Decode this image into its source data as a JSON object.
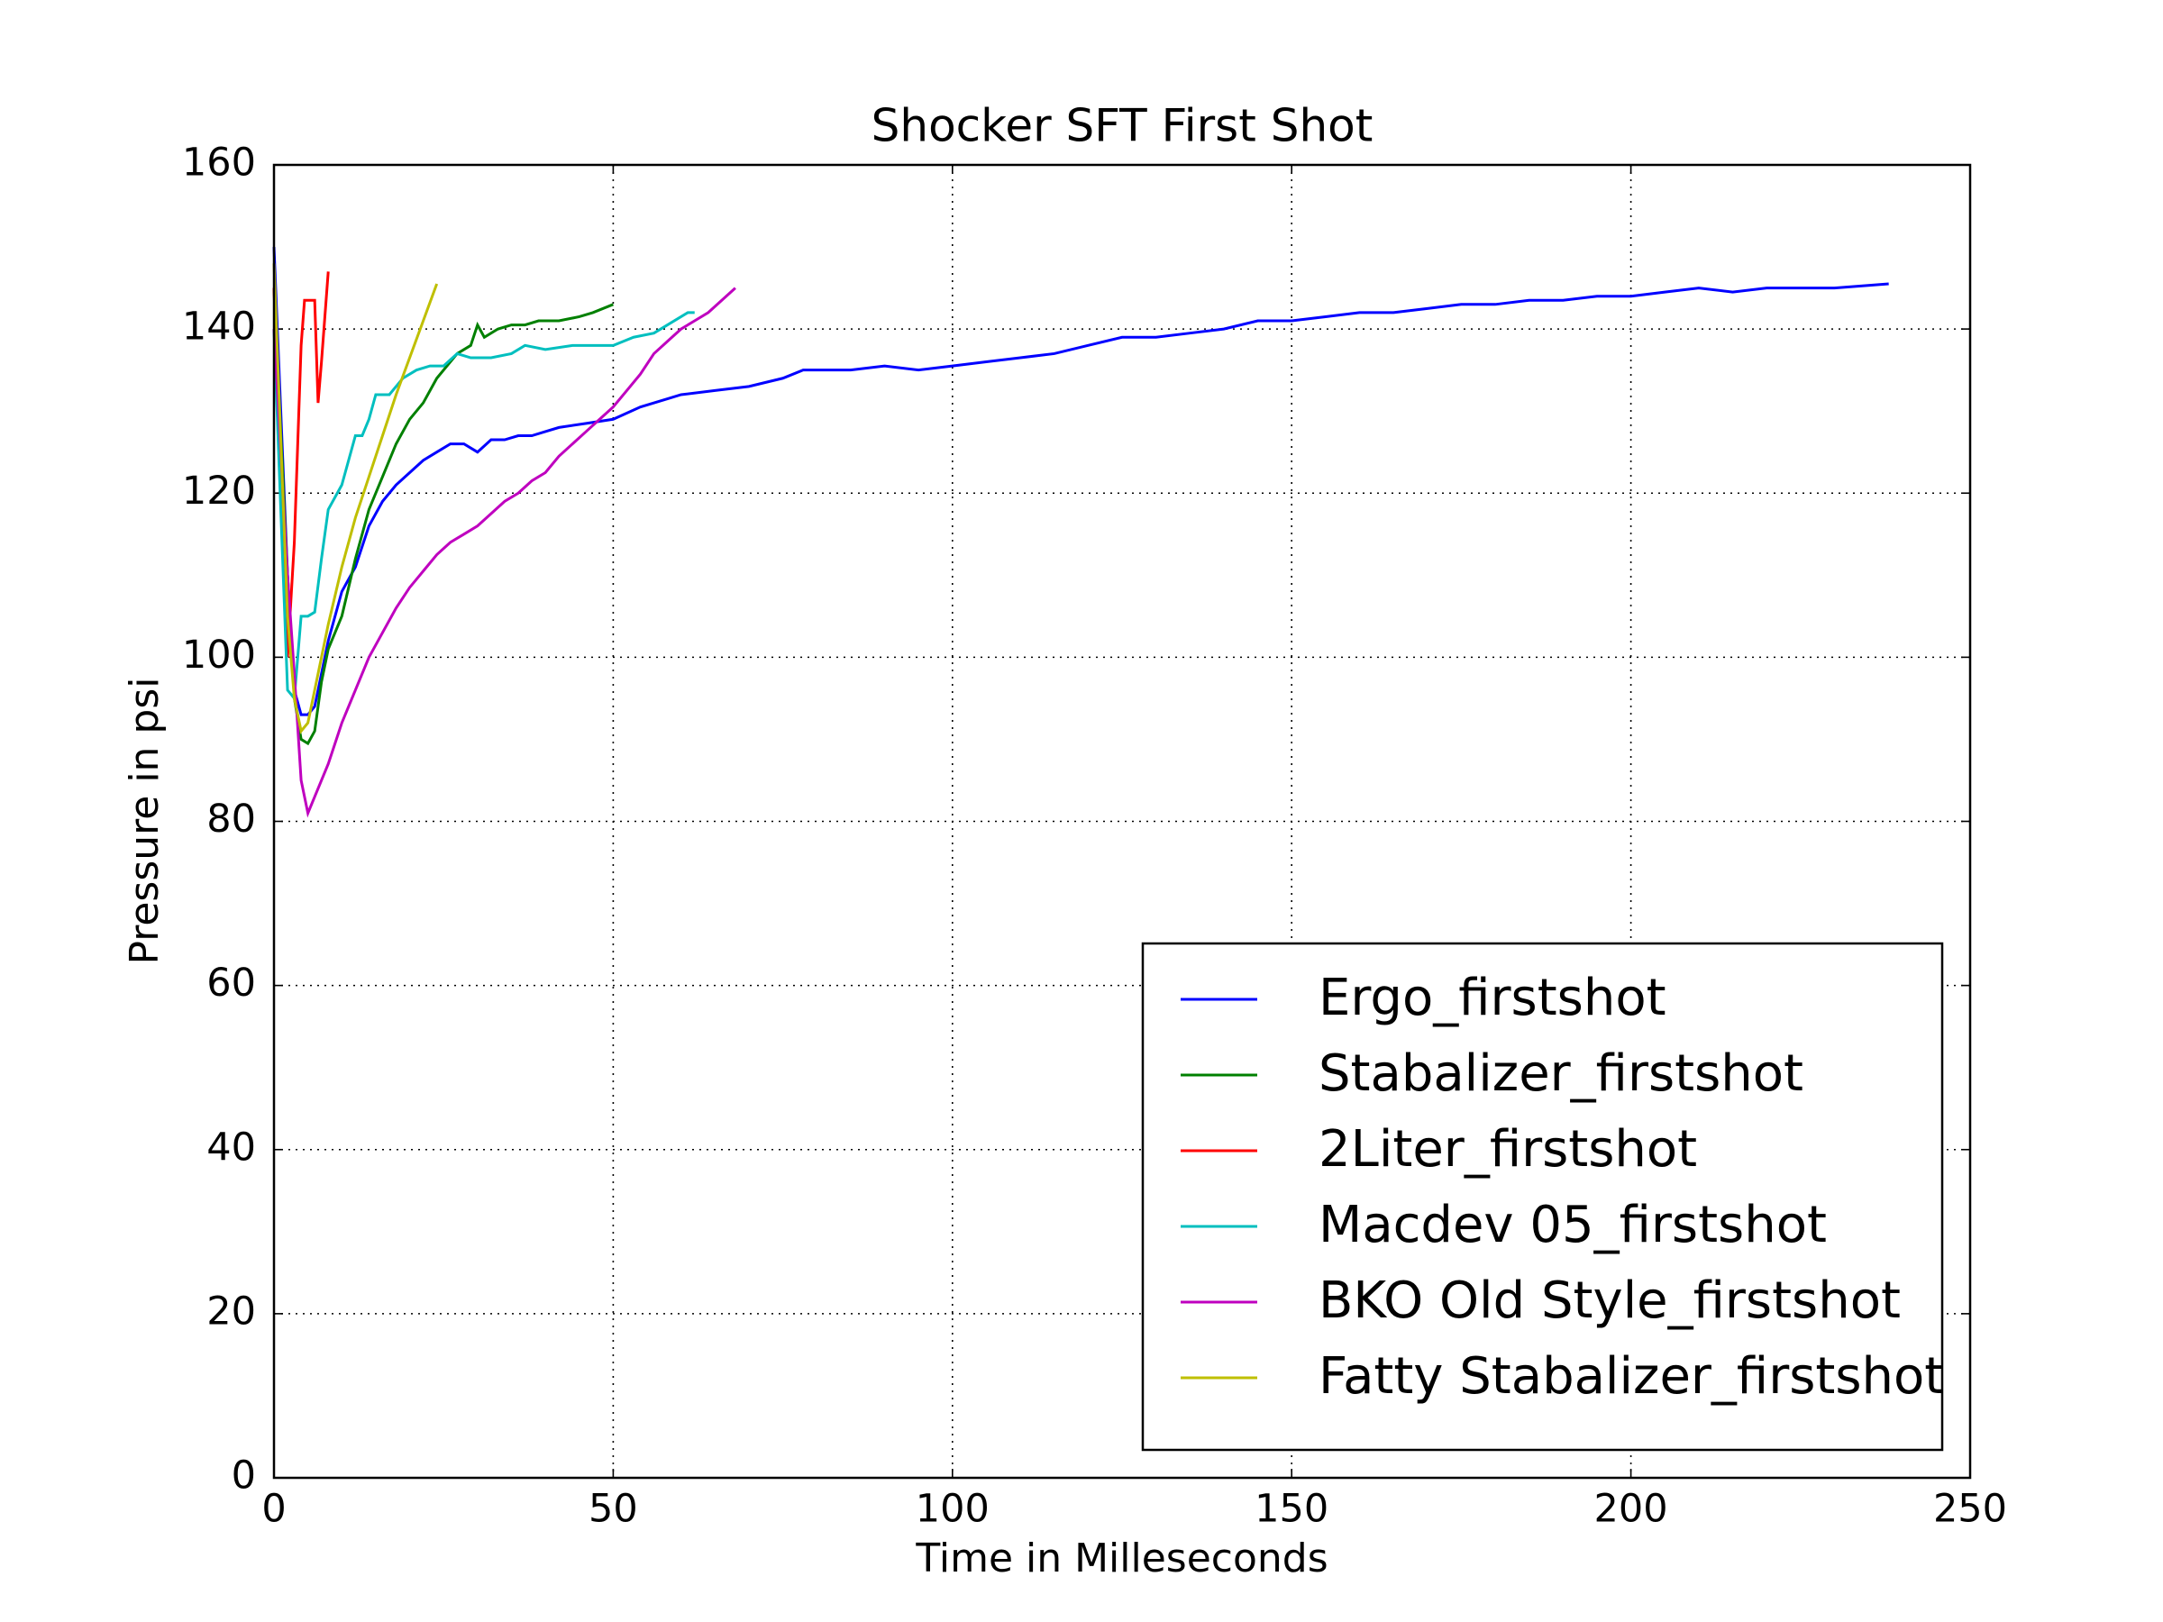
{
  "chart_data": {
    "type": "line",
    "title": "Shocker SFT  First Shot",
    "xlabel": "Time in Milleseconds",
    "ylabel": "Pressure in psi",
    "xlim": [
      0,
      250
    ],
    "ylim": [
      0,
      160
    ],
    "xticks": [
      0,
      50,
      100,
      150,
      200,
      250
    ],
    "yticks": [
      0,
      20,
      40,
      60,
      80,
      100,
      120,
      140,
      160
    ],
    "grid": true,
    "legend": "lower right",
    "series": [
      {
        "name": "Ergo_firstshot",
        "color": "#0000ff",
        "x": [
          0,
          2,
          3,
          4,
          5,
          6,
          7,
          8,
          9,
          10,
          12,
          14,
          16,
          18,
          20,
          22,
          24,
          26,
          28,
          30,
          32,
          34,
          36,
          38,
          40,
          42,
          46,
          50,
          54,
          58,
          60,
          65,
          70,
          75,
          78,
          85,
          90,
          95,
          100,
          105,
          110,
          115,
          120,
          125,
          130,
          135,
          140,
          145,
          150,
          155,
          160,
          165,
          170,
          175,
          180,
          185,
          190,
          195,
          200,
          205,
          210,
          215,
          220,
          230,
          238
        ],
        "values": [
          150,
          110,
          96,
          93,
          93,
          94,
          98,
          102,
          105,
          108,
          111,
          116,
          119,
          121,
          122.5,
          124,
          125,
          126,
          126,
          125,
          126.5,
          126.5,
          127,
          127,
          127.5,
          128,
          128.5,
          129,
          130.5,
          131.5,
          132,
          132.5,
          133,
          134,
          135,
          135,
          135.5,
          135,
          135.5,
          136,
          136.5,
          137,
          138,
          139,
          139,
          139.5,
          140,
          141,
          141,
          141.5,
          142,
          142,
          142.5,
          143,
          143,
          143.5,
          143.5,
          144,
          144,
          144.5,
          145,
          144.5,
          145,
          145,
          145.5
        ]
      },
      {
        "name": "Stabalizer_firstshot",
        "color": "#008000",
        "x": [
          0,
          2,
          3,
          4,
          5,
          6,
          7,
          8,
          10,
          12,
          14,
          16,
          18,
          20,
          22,
          24,
          26,
          27,
          29,
          30,
          31,
          33,
          35,
          37,
          39,
          42,
          45,
          47,
          50
        ],
        "values": [
          145,
          110,
          95,
          90,
          89.5,
          91,
          97,
          101,
          105,
          112,
          118,
          122,
          126,
          129,
          131,
          134,
          136,
          137,
          138,
          140.5,
          139,
          140,
          140.5,
          140.5,
          141,
          141,
          141.5,
          142,
          143
        ]
      },
      {
        "name": "2Liter_firstshot",
        "color": "#ff0000",
        "x": [
          0,
          1,
          2,
          3,
          4,
          4.5,
          5,
          6,
          6.5,
          7,
          8
        ],
        "values": [
          145,
          120,
          100,
          114,
          138,
          143.5,
          143.5,
          143.5,
          131,
          136,
          147
        ]
      },
      {
        "name": "Macdev 05_firstshot",
        "color": "#00bfbf",
        "x": [
          0,
          2,
          3,
          4,
          5,
          6,
          7,
          8,
          10,
          12,
          13,
          14,
          15,
          17,
          19,
          21,
          23,
          25,
          27,
          29,
          32,
          35,
          37,
          40,
          44,
          50,
          53,
          56,
          58,
          61,
          62
        ],
        "values": [
          140,
          96,
          95,
          105,
          105,
          105.5,
          112,
          118,
          121,
          127,
          127,
          129,
          132,
          132,
          134,
          135,
          135.5,
          135.5,
          137,
          136.5,
          136.5,
          137,
          138,
          137.5,
          138,
          138,
          139,
          139.5,
          140.5,
          142,
          142
        ]
      },
      {
        "name": "BKO Old Style_firstshot",
        "color": "#bf00bf",
        "x": [
          0,
          2,
          3,
          4,
          5,
          6,
          8,
          10,
          12,
          14,
          16,
          18,
          20,
          22,
          24,
          26,
          28,
          30,
          32,
          34,
          36,
          38,
          40,
          42,
          44,
          46,
          48,
          50,
          52,
          54,
          56,
          58,
          60,
          62,
          64,
          66,
          68
        ],
        "values": [
          140,
          110,
          98,
          85,
          81,
          83,
          87,
          92,
          96,
          100,
          103,
          106,
          108.5,
          110.5,
          112.5,
          114,
          115,
          116,
          117.5,
          119,
          120,
          121.5,
          122.5,
          124.5,
          126,
          127.5,
          129,
          130.5,
          132.5,
          134.5,
          137,
          138.5,
          140,
          141,
          142,
          143.5,
          145
        ]
      },
      {
        "name": "Fatty Stabalizer_firstshot",
        "color": "#bfbf00",
        "x": [
          0,
          2,
          3,
          4,
          5,
          6,
          8,
          10,
          12,
          14,
          16,
          18,
          20,
          22,
          24
        ],
        "values": [
          148,
          105,
          95,
          91,
          92,
          96,
          104,
          111,
          117,
          122,
          127,
          132,
          136.5,
          141,
          145.5
        ]
      }
    ]
  }
}
